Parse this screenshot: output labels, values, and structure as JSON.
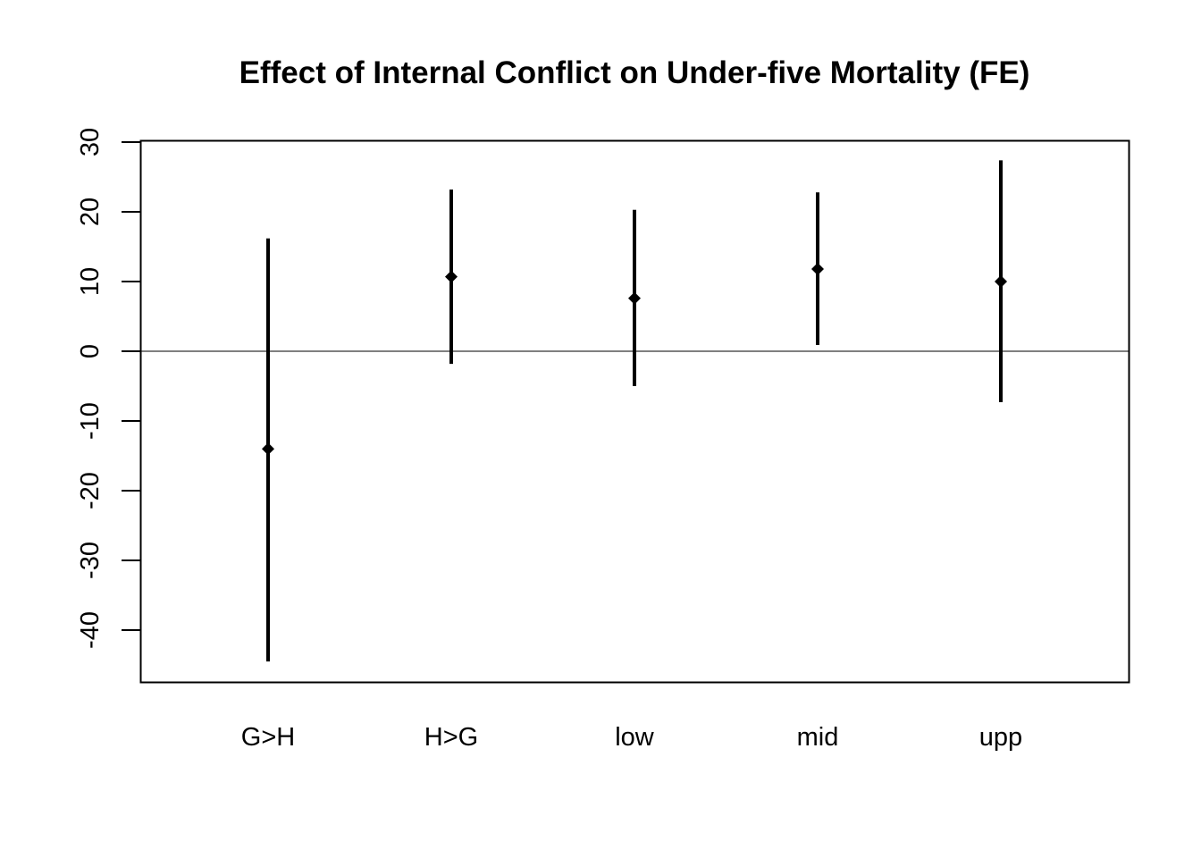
{
  "chart_data": {
    "type": "errorbar",
    "title": "Effect of Internal Conflict on Under-five Mortality (FE)",
    "xlabel": "",
    "ylabel": "",
    "categories": [
      "G>H",
      "H>G",
      "low",
      "mid",
      "upp"
    ],
    "estimates": [
      -14.0,
      10.7,
      7.6,
      11.8,
      10.0
    ],
    "lower": [
      -44.5,
      -1.8,
      -5.0,
      0.9,
      -7.3
    ],
    "upper": [
      16.2,
      23.2,
      20.3,
      22.8,
      27.4
    ],
    "reference_line": 0,
    "ylim": [
      -47.5,
      30.2
    ],
    "yticks": [
      -40,
      -30,
      -20,
      -10,
      0,
      10,
      20,
      30
    ],
    "ytick_labels": [
      "-40",
      "-30",
      "-20",
      "-10",
      "0",
      "10",
      "20",
      "30"
    ],
    "grid": false,
    "marker": "diamond",
    "color": "#000000"
  }
}
